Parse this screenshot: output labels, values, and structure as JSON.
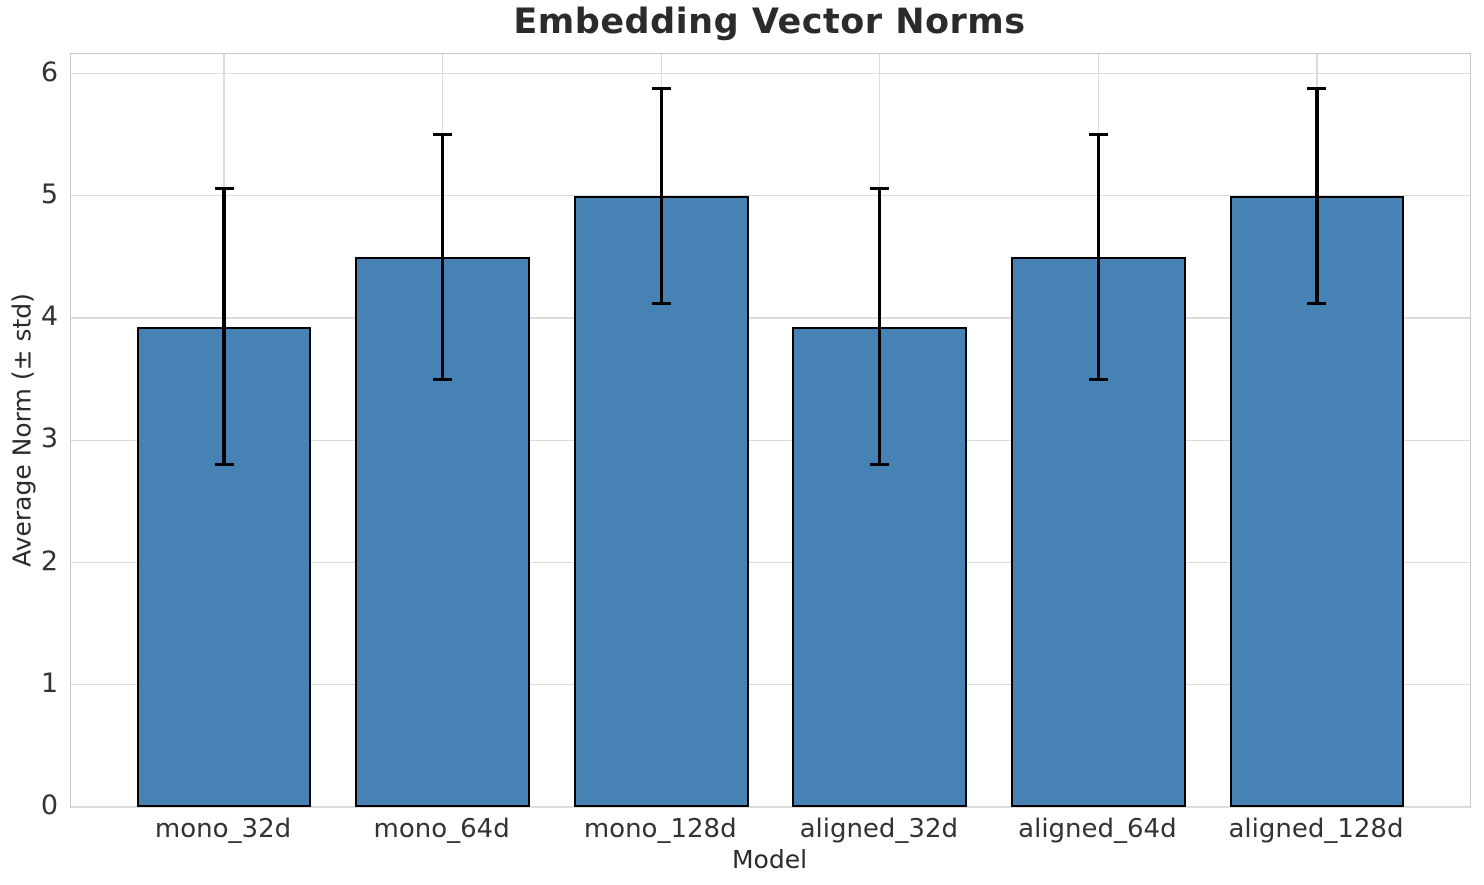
{
  "chart_data": {
    "type": "bar",
    "title": "Embedding Vector Norms",
    "xlabel": "Model",
    "ylabel": "Average Norm (± std)",
    "categories": [
      "mono_32d",
      "mono_64d",
      "mono_128d",
      "aligned_32d",
      "aligned_64d",
      "aligned_128d"
    ],
    "values": [
      3.93,
      4.5,
      5.0,
      3.93,
      4.5,
      5.0
    ],
    "errors": [
      1.13,
      1.0,
      0.88,
      1.13,
      1.0,
      0.88
    ],
    "yticks": [
      0,
      1,
      2,
      3,
      4,
      5,
      6
    ],
    "ylim": [
      0,
      6.16
    ],
    "grid": true,
    "legend": "none",
    "colors": {
      "bar_fill": "#4682b4",
      "bar_edge": "#000000",
      "error_bar": "#000000",
      "grid_line": "#dcdcdc",
      "spine": "#c9c9c9",
      "title_text": "#2b2b2b",
      "tick_text": "#333333"
    }
  }
}
